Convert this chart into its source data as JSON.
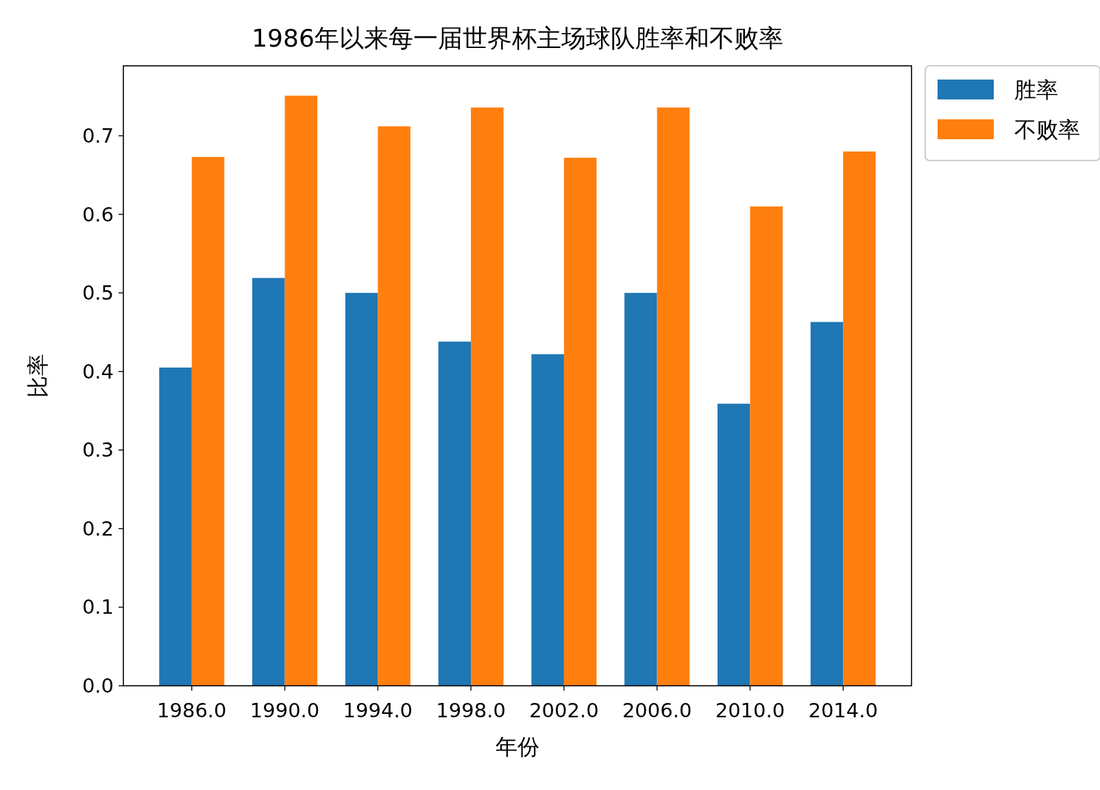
{
  "chart_data": {
    "type": "bar",
    "title": "1986年以来每一届世界杯主场球队胜率和不败率",
    "xlabel": "年份",
    "ylabel": "比率",
    "x": [
      1986,
      1990,
      1994,
      1998,
      2002,
      2006,
      2010,
      2014
    ],
    "series": [
      {
        "name": "胜率",
        "color": "#1f77b4",
        "values": [
          0.405,
          0.519,
          0.5,
          0.438,
          0.422,
          0.5,
          0.359,
          0.463
        ]
      },
      {
        "name": "不败率",
        "color": "#ff7f0e",
        "values": [
          0.673,
          0.751,
          0.712,
          0.736,
          0.672,
          0.736,
          0.61,
          0.68
        ]
      }
    ],
    "xlim": [
      1983.06,
      2016.94
    ],
    "ylim": [
      0,
      0.789
    ],
    "xticks": [
      {
        "value": 1986,
        "label": "1986.0"
      },
      {
        "value": 1990,
        "label": "1990.0"
      },
      {
        "value": 1994,
        "label": "1994.0"
      },
      {
        "value": 1998,
        "label": "1998.0"
      },
      {
        "value": 2002,
        "label": "2002.0"
      },
      {
        "value": 2006,
        "label": "2006.0"
      },
      {
        "value": 2010,
        "label": "2010.0"
      },
      {
        "value": 2014,
        "label": "2014.0"
      }
    ],
    "yticks": [
      {
        "value": 0,
        "label": "0.0"
      },
      {
        "value": 0.1,
        "label": "0.1"
      },
      {
        "value": 0.2,
        "label": "0.2"
      },
      {
        "value": 0.3,
        "label": "0.3"
      },
      {
        "value": 0.4,
        "label": "0.4"
      },
      {
        "value": 0.5,
        "label": "0.5"
      },
      {
        "value": 0.6,
        "label": "0.6"
      },
      {
        "value": 0.7,
        "label": "0.7"
      }
    ],
    "legend": "top right"
  }
}
